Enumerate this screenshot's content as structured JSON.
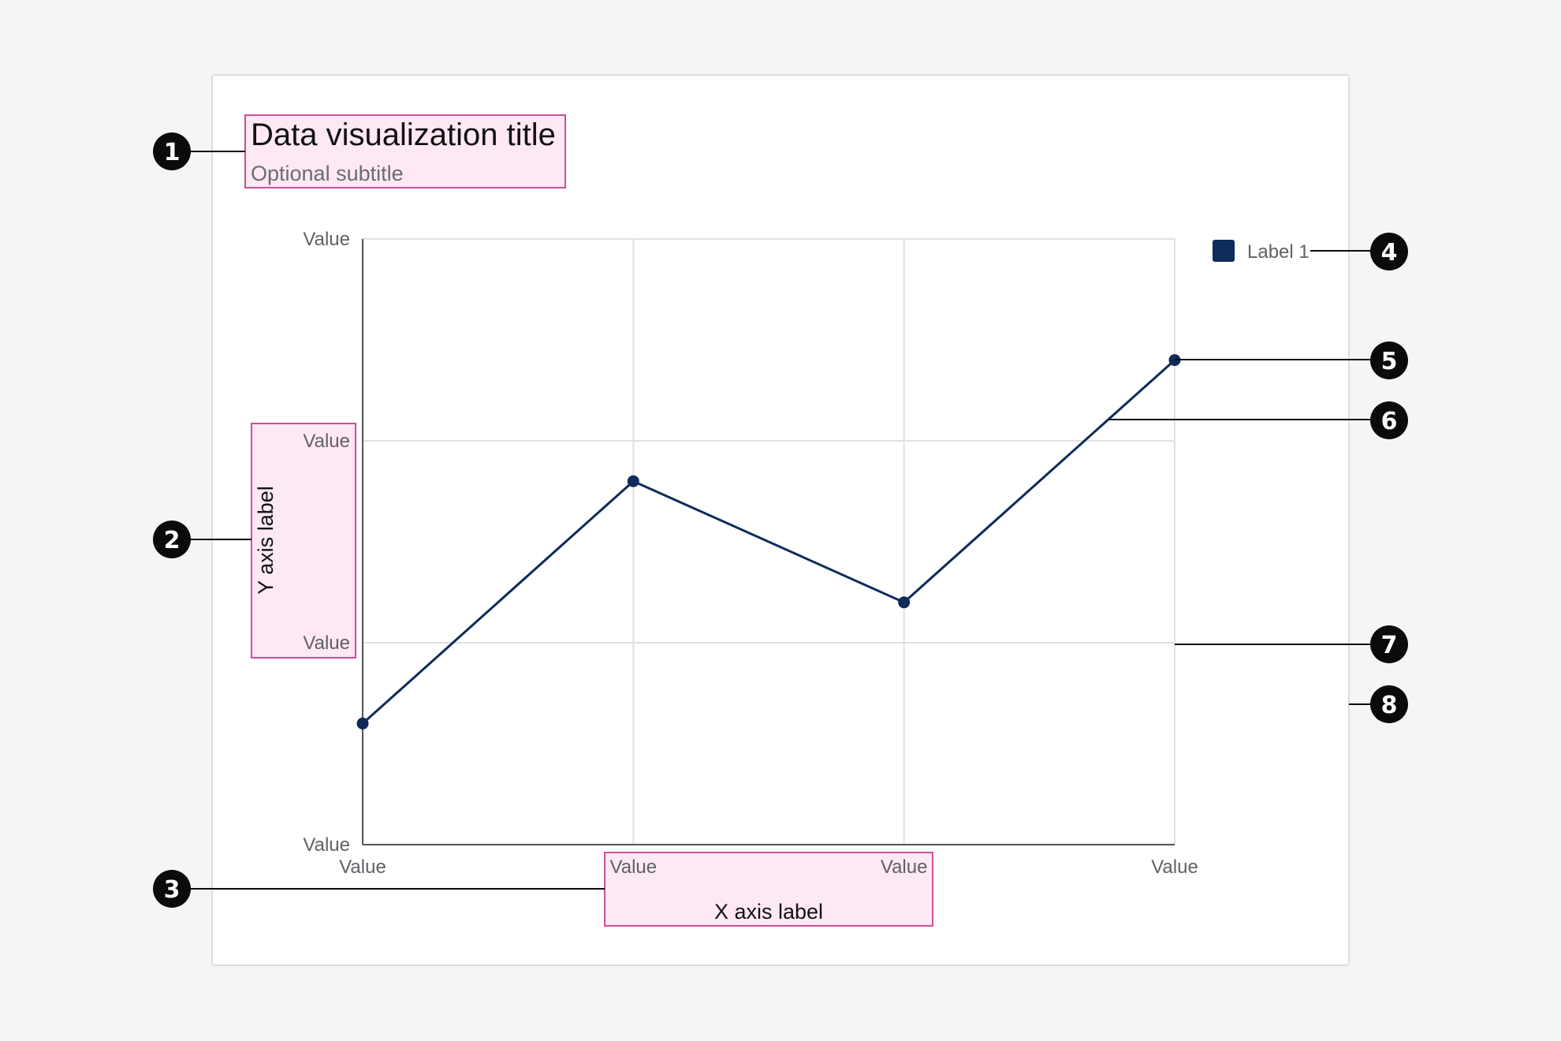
{
  "chart": {
    "title": "Data visualization title",
    "subtitle": "Optional subtitle",
    "x_axis_label": "X axis label",
    "y_axis_label": "Y axis label",
    "legend": [
      {
        "label": "Label 1",
        "color": "#0d2b5b"
      }
    ]
  },
  "colors": {
    "series": "#0d2b5b",
    "highlight_fill": "#fde8f3",
    "highlight_stroke": "#cc4f9a",
    "gridline": "#e0e0e0",
    "marker": "#0b0b0b"
  },
  "chart_data": {
    "type": "line",
    "title": "Data visualization title",
    "subtitle": "Optional subtitle",
    "xlabel": "X axis label",
    "ylabel": "Y axis label",
    "x_tick_labels": [
      "Value",
      "Value",
      "Value",
      "Value"
    ],
    "y_tick_labels": [
      "Value",
      "Value",
      "Value",
      "Value"
    ],
    "ylim": [
      0,
      3
    ],
    "grid": true,
    "legend_position": "top-right",
    "series": [
      {
        "name": "Label 1",
        "x": [
          0,
          1,
          2,
          3
        ],
        "values": [
          0.6,
          1.8,
          1.2,
          2.4
        ]
      }
    ]
  },
  "markers": [
    "1",
    "2",
    "3",
    "4",
    "5",
    "6",
    "7",
    "8"
  ]
}
